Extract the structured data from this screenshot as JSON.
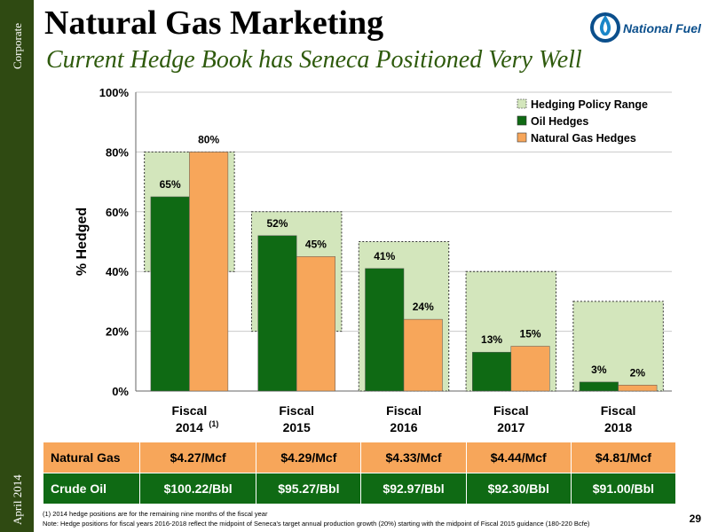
{
  "sidebar": {
    "top_label": "Corporate",
    "bottom_label": "April 2014"
  },
  "header": {
    "title": "Natural Gas Marketing",
    "subtitle": "Current Hedge Book has Seneca Positioned Very Well",
    "logo_text": "National Fuel",
    "logo_icon": "flame-drop-icon"
  },
  "chart_data": {
    "type": "bar",
    "ylabel": "% Hedged",
    "ylim": [
      0,
      100
    ],
    "yticks": [
      "0%",
      "20%",
      "40%",
      "60%",
      "80%",
      "100%"
    ],
    "categories": [
      {
        "line1": "Fiscal",
        "line2": "2014",
        "sup": "(1)"
      },
      {
        "line1": "Fiscal",
        "line2": "2015",
        "sup": ""
      },
      {
        "line1": "Fiscal",
        "line2": "2016",
        "sup": ""
      },
      {
        "line1": "Fiscal",
        "line2": "2017",
        "sup": ""
      },
      {
        "line1": "Fiscal",
        "line2": "2018",
        "sup": ""
      }
    ],
    "ranges": [
      [
        40,
        80
      ],
      [
        20,
        60
      ],
      [
        0,
        50
      ],
      [
        0,
        40
      ],
      [
        0,
        30
      ]
    ],
    "series": [
      {
        "name": "Oil Hedges",
        "values": [
          65,
          52,
          41,
          13,
          3
        ],
        "labels": [
          "65%",
          "52%",
          "41%",
          "13%",
          "3%"
        ],
        "color": "#0f6a14"
      },
      {
        "name": "Natural Gas Hedges",
        "values": [
          80,
          45,
          24,
          15,
          2
        ],
        "labels": [
          "80%",
          "45%",
          "24%",
          "15%",
          "2%"
        ],
        "color": "#f7a65a"
      }
    ],
    "range_name": "Hedging Policy Range",
    "range_color": "#d3e6bc",
    "legend_position": "top-right",
    "grid": true
  },
  "price_table": {
    "rows": [
      {
        "label": "Natural Gas",
        "values": [
          "$4.27/Mcf",
          "$4.29/Mcf",
          "$4.33/Mcf",
          "$4.44/Mcf",
          "$4.81/Mcf"
        ]
      },
      {
        "label": "Crude Oil",
        "values": [
          "$100.22/Bbl",
          "$95.27/Bbl",
          "$92.97/Bbl",
          "$92.30/Bbl",
          "$91.00/Bbl"
        ]
      }
    ]
  },
  "footnotes": {
    "note1": "(1)    2014 hedge positions are for the remaining nine months of the fiscal year",
    "note2": "Note: Hedge positions for fiscal years 2016-2018 reflect the midpoint of Seneca's target annual production growth (20%) starting with the midpoint of Fiscal 2015 guidance (180-220 Bcfe)"
  },
  "page_number": "29"
}
